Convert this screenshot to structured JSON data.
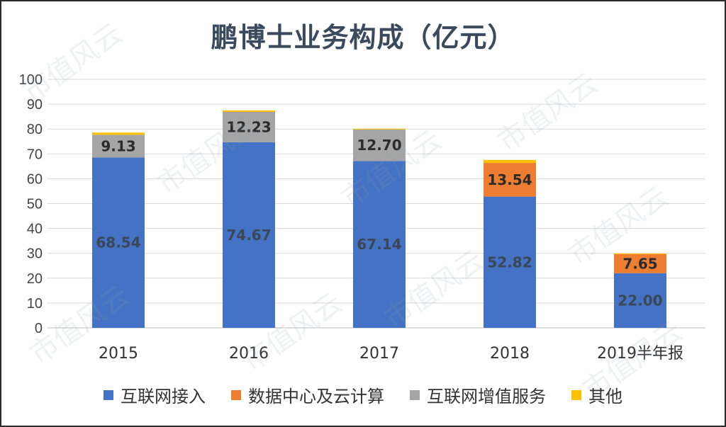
{
  "chart_data": {
    "type": "bar",
    "stacked": true,
    "title": "鹏博士业务构成（亿元）",
    "categories": [
      "2015",
      "2016",
      "2017",
      "2018",
      "2019半年报"
    ],
    "ylim": [
      0,
      100
    ],
    "yticks": [
      0,
      10,
      20,
      30,
      40,
      50,
      60,
      70,
      80,
      90,
      100
    ],
    "grid": true,
    "legend_position": "bottom",
    "series": [
      {
        "name": "互联网接入",
        "color": "#4472C4",
        "values": [
          68.54,
          74.67,
          67.14,
          52.82,
          22.0
        ],
        "labels": [
          "68.54",
          "74.67",
          "67.14",
          "52.82",
          "22.00"
        ]
      },
      {
        "name": "数据中心及云计算",
        "color": "#ED7D31",
        "values": [
          0,
          0,
          0,
          13.54,
          7.65
        ],
        "labels": [
          "",
          "",
          "",
          "13.54",
          "7.65"
        ]
      },
      {
        "name": "互联网增值服务",
        "color": "#A5A5A5",
        "values": [
          9.13,
          12.23,
          12.7,
          0,
          0
        ],
        "labels": [
          "9.13",
          "12.23",
          "12.70",
          "",
          ""
        ]
      },
      {
        "name": "其他",
        "color": "#FFC000",
        "values": [
          0.9,
          0.6,
          0.3,
          1.2,
          0.3
        ],
        "labels": [
          "",
          "",
          "",
          "",
          ""
        ]
      }
    ]
  },
  "watermark": "市值风云"
}
